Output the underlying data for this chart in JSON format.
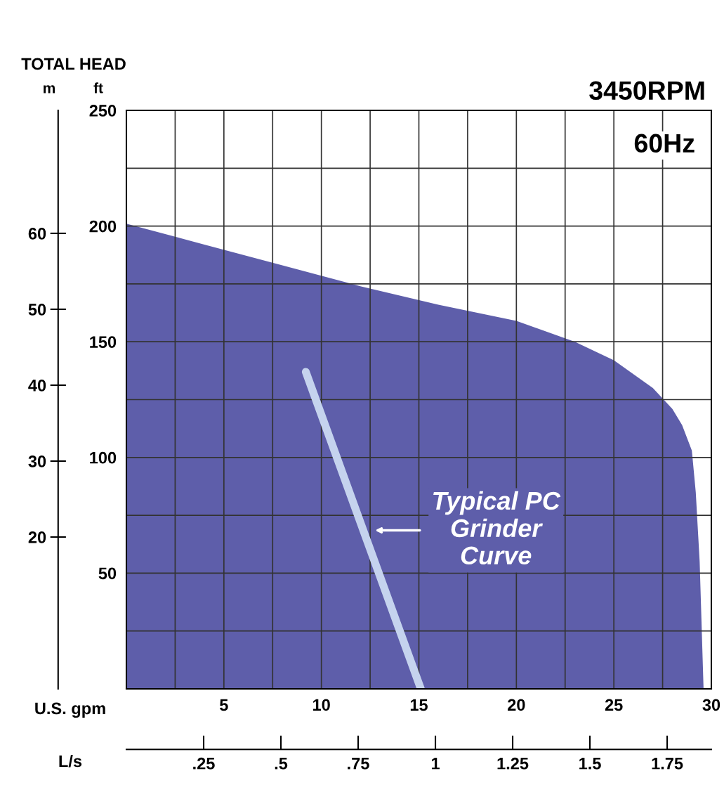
{
  "chart_data": {
    "type": "area",
    "title": "TOTAL HEAD",
    "ylabel": "ft",
    "y2label": "m",
    "xlabel": "U.S. gpm",
    "x2label": "L/s",
    "annotations": [
      "3450RPM",
      "60Hz"
    ],
    "series": [
      {
        "color": "#5e5eaa",
        "x": [
          0,
          4,
          8,
          12,
          16,
          20,
          23,
          25,
          27,
          28,
          28.5,
          29,
          29.2,
          29.4,
          29.6
        ],
        "values": [
          201,
          192,
          183,
          174,
          166,
          159,
          150,
          142,
          130,
          121,
          114,
          103,
          85,
          55,
          0
        ]
      },
      {
        "type": "line",
        "name": "Typical PC Grinder Curve",
        "color": "#c5d3ee",
        "x": [
          9.2,
          15.1
        ],
        "values": [
          137,
          0
        ]
      }
    ],
    "xlim": [
      0,
      30
    ],
    "xticks": [
      {
        "value": 2.5,
        "label": null
      },
      5,
      {
        "value": 7.5,
        "label": null
      },
      10,
      {
        "value": 12.5,
        "label": null
      },
      15,
      {
        "value": 17.5,
        "label": null
      },
      20,
      {
        "value": 22.5,
        "label": null
      },
      25,
      {
        "value": 27.5,
        "label": null
      },
      30
    ],
    "ylim": [
      0,
      250
    ],
    "yticks": [
      {
        "value": 25,
        "label": null
      },
      50,
      {
        "value": 75,
        "label": null
      },
      100,
      {
        "value": 125,
        "label": null
      },
      150,
      {
        "value": 175,
        "label": null
      },
      200,
      {
        "value": 225,
        "label": null
      },
      250
    ],
    "y2lim": [
      0,
      76.2
    ],
    "y2ticks": [
      20,
      30,
      40,
      50,
      60
    ],
    "x2lim": [
      0,
      1.893
    ],
    "x2ticks": [
      {
        "value": 0.25,
        "label": ".25"
      },
      {
        "value": 0.5,
        "label": ".5"
      },
      {
        "value": 0.75,
        "label": ".75"
      },
      1,
      {
        "value": 1.25,
        "label": "1.25"
      },
      {
        "value": 1.5,
        "label": "1.5"
      },
      {
        "value": 1.75,
        "label": "1.75"
      }
    ],
    "grid": true,
    "legend": false
  }
}
